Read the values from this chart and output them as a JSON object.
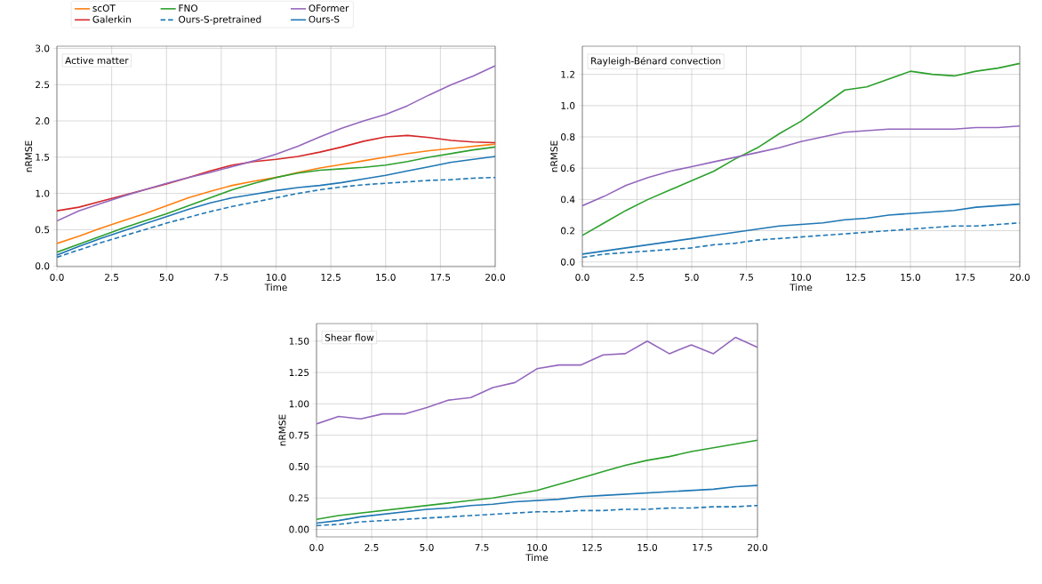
{
  "chart_data": [
    {
      "type": "line",
      "xlabel": "Time",
      "ylabel": "nRMSE",
      "annotations": [
        "Active matter"
      ],
      "grid": true,
      "legend": "top",
      "xlim": [
        0,
        20
      ],
      "ylim": [
        -0.01,
        3.03
      ],
      "xticks": [
        {
          "value": 0,
          "label": "0.0"
        },
        {
          "value": 2.5,
          "label": "2.5"
        },
        {
          "value": 5,
          "label": "5.0"
        },
        {
          "value": 7.5,
          "label": "7.5"
        },
        {
          "value": 10,
          "label": "10.0"
        },
        {
          "value": 12.5,
          "label": "12.5"
        },
        {
          "value": 15,
          "label": "15.0"
        },
        {
          "value": 17.5,
          "label": "17.5"
        },
        {
          "value": 20,
          "label": "20.0"
        }
      ],
      "yticks": [
        {
          "value": 0,
          "label": "0.0"
        },
        {
          "value": 0.5,
          "label": "0.5"
        },
        {
          "value": 1,
          "label": "1.0"
        },
        {
          "value": 1.5,
          "label": "1.5"
        },
        {
          "value": 2,
          "label": "2.0"
        },
        {
          "value": 2.5,
          "label": "2.5"
        },
        {
          "value": 3,
          "label": "3.0"
        }
      ],
      "x": [
        0,
        1,
        2,
        3,
        4,
        5,
        6,
        7,
        8,
        9,
        10,
        11,
        12,
        13,
        14,
        15,
        16,
        17,
        18,
        19,
        20
      ],
      "series": [
        {
          "name": "scOT",
          "color": "#ff7f0e",
          "line_style": "solid",
          "values": [
            0.31,
            0.41,
            0.52,
            0.62,
            0.72,
            0.83,
            0.94,
            1.03,
            1.11,
            1.17,
            1.22,
            1.29,
            1.35,
            1.4,
            1.45,
            1.5,
            1.55,
            1.59,
            1.62,
            1.65,
            1.68
          ]
        },
        {
          "name": "Galerkin",
          "color": "#d62728",
          "line_style": "solid",
          "values": [
            0.76,
            0.81,
            0.89,
            0.97,
            1.05,
            1.13,
            1.22,
            1.31,
            1.39,
            1.44,
            1.47,
            1.51,
            1.57,
            1.64,
            1.72,
            1.78,
            1.8,
            1.77,
            1.73,
            1.71,
            1.7
          ]
        },
        {
          "name": "FNO",
          "color": "#2ca02c",
          "line_style": "solid",
          "values": [
            0.19,
            0.3,
            0.41,
            0.52,
            0.62,
            0.72,
            0.83,
            0.94,
            1.05,
            1.14,
            1.22,
            1.28,
            1.32,
            1.34,
            1.36,
            1.39,
            1.44,
            1.5,
            1.55,
            1.6,
            1.64
          ]
        },
        {
          "name": "Ours-S-pretrained",
          "color": "#1f77b4",
          "line_style": "dashed",
          "values": [
            0.12,
            0.22,
            0.32,
            0.41,
            0.5,
            0.59,
            0.67,
            0.75,
            0.82,
            0.88,
            0.94,
            1.0,
            1.05,
            1.09,
            1.12,
            1.14,
            1.16,
            1.18,
            1.19,
            1.21,
            1.22
          ]
        },
        {
          "name": "OFormer",
          "color": "#9467bd",
          "line_style": "solid",
          "values": [
            0.62,
            0.76,
            0.86,
            0.96,
            1.05,
            1.14,
            1.22,
            1.29,
            1.37,
            1.45,
            1.54,
            1.65,
            1.78,
            1.9,
            2.0,
            2.09,
            2.21,
            2.36,
            2.5,
            2.62,
            2.76
          ]
        },
        {
          "name": "Ours-S",
          "color": "#1f77b4",
          "line_style": "solid",
          "values": [
            0.15,
            0.27,
            0.38,
            0.48,
            0.58,
            0.68,
            0.78,
            0.87,
            0.94,
            0.99,
            1.04,
            1.08,
            1.11,
            1.15,
            1.2,
            1.25,
            1.31,
            1.37,
            1.43,
            1.47,
            1.51
          ]
        }
      ]
    },
    {
      "type": "line",
      "xlabel": "Time",
      "ylabel": "nRMSE",
      "annotations": [
        "Rayleigh-Bénard convection"
      ],
      "grid": true,
      "xlim": [
        0,
        20
      ],
      "ylim": [
        -0.03,
        1.38
      ],
      "xticks": [
        {
          "value": 0,
          "label": "0.0"
        },
        {
          "value": 2.5,
          "label": "2.5"
        },
        {
          "value": 5,
          "label": "5.0"
        },
        {
          "value": 7.5,
          "label": "7.5"
        },
        {
          "value": 10,
          "label": "10.0"
        },
        {
          "value": 12.5,
          "label": "12.5"
        },
        {
          "value": 15,
          "label": "15.0"
        },
        {
          "value": 17.5,
          "label": "17.5"
        },
        {
          "value": 20,
          "label": "20.0"
        }
      ],
      "yticks": [
        {
          "value": 0,
          "label": "0.0"
        },
        {
          "value": 0.2,
          "label": "0.2"
        },
        {
          "value": 0.4,
          "label": "0.4"
        },
        {
          "value": 0.6,
          "label": "0.6"
        },
        {
          "value": 0.8,
          "label": "0.8"
        },
        {
          "value": 1,
          "label": "1.0"
        },
        {
          "value": 1.2,
          "label": "1.2"
        }
      ],
      "x": [
        0,
        1,
        2,
        3,
        4,
        5,
        6,
        7,
        8,
        9,
        10,
        11,
        12,
        13,
        14,
        15,
        16,
        17,
        18,
        19,
        20
      ],
      "series": [
        {
          "color": "#2ca02c",
          "line_style": "solid",
          "values": [
            0.17,
            0.25,
            0.33,
            0.4,
            0.46,
            0.52,
            0.58,
            0.66,
            0.73,
            0.82,
            0.9,
            1.0,
            1.1,
            1.12,
            1.17,
            1.22,
            1.2,
            1.19,
            1.22,
            1.24,
            1.27
          ]
        },
        {
          "color": "#1f77b4",
          "line_style": "dashed",
          "values": [
            0.03,
            0.05,
            0.06,
            0.07,
            0.08,
            0.09,
            0.11,
            0.12,
            0.14,
            0.15,
            0.16,
            0.17,
            0.18,
            0.19,
            0.2,
            0.21,
            0.22,
            0.23,
            0.23,
            0.24,
            0.25
          ]
        },
        {
          "color": "#9467bd",
          "line_style": "solid",
          "values": [
            0.36,
            0.42,
            0.49,
            0.54,
            0.58,
            0.61,
            0.64,
            0.67,
            0.7,
            0.73,
            0.77,
            0.8,
            0.83,
            0.84,
            0.85,
            0.85,
            0.85,
            0.85,
            0.86,
            0.86,
            0.87
          ]
        },
        {
          "color": "#1f77b4",
          "line_style": "solid",
          "values": [
            0.05,
            0.07,
            0.09,
            0.11,
            0.13,
            0.15,
            0.17,
            0.19,
            0.21,
            0.23,
            0.24,
            0.25,
            0.27,
            0.28,
            0.3,
            0.31,
            0.32,
            0.33,
            0.35,
            0.36,
            0.37
          ]
        }
      ]
    },
    {
      "type": "line",
      "xlabel": "Time",
      "ylabel": "nRMSE",
      "annotations": [
        "Shear flow"
      ],
      "grid": true,
      "xlim": [
        0,
        20
      ],
      "ylim": [
        -0.06,
        1.64
      ],
      "xticks": [
        {
          "value": 0,
          "label": "0.0"
        },
        {
          "value": 2.5,
          "label": "2.5"
        },
        {
          "value": 5,
          "label": "5.0"
        },
        {
          "value": 7.5,
          "label": "7.5"
        },
        {
          "value": 10,
          "label": "10.0"
        },
        {
          "value": 12.5,
          "label": "12.5"
        },
        {
          "value": 15,
          "label": "15.0"
        },
        {
          "value": 17.5,
          "label": "17.5"
        },
        {
          "value": 20,
          "label": "20.0"
        }
      ],
      "yticks": [
        {
          "value": 0,
          "label": "0.00"
        },
        {
          "value": 0.25,
          "label": "0.25"
        },
        {
          "value": 0.5,
          "label": "0.50"
        },
        {
          "value": 0.75,
          "label": "0.75"
        },
        {
          "value": 1,
          "label": "1.00"
        },
        {
          "value": 1.25,
          "label": "1.25"
        },
        {
          "value": 1.5,
          "label": "1.50"
        }
      ],
      "x": [
        0,
        1,
        2,
        3,
        4,
        5,
        6,
        7,
        8,
        9,
        10,
        11,
        12,
        13,
        14,
        15,
        16,
        17,
        18,
        19,
        20
      ],
      "series": [
        {
          "color": "#2ca02c",
          "line_style": "solid",
          "values": [
            0.08,
            0.11,
            0.13,
            0.15,
            0.17,
            0.19,
            0.21,
            0.23,
            0.25,
            0.28,
            0.31,
            0.36,
            0.41,
            0.46,
            0.51,
            0.55,
            0.58,
            0.62,
            0.65,
            0.68,
            0.71
          ]
        },
        {
          "color": "#1f77b4",
          "line_style": "dashed",
          "values": [
            0.03,
            0.04,
            0.06,
            0.07,
            0.08,
            0.09,
            0.1,
            0.11,
            0.12,
            0.13,
            0.14,
            0.14,
            0.15,
            0.15,
            0.16,
            0.16,
            0.17,
            0.17,
            0.18,
            0.18,
            0.19
          ]
        },
        {
          "color": "#9467bd",
          "line_style": "solid",
          "values": [
            0.84,
            0.9,
            0.88,
            0.92,
            0.92,
            0.97,
            1.03,
            1.05,
            1.13,
            1.17,
            1.28,
            1.31,
            1.31,
            1.39,
            1.4,
            1.5,
            1.4,
            1.47,
            1.4,
            1.53,
            1.45
          ]
        },
        {
          "color": "#1f77b4",
          "line_style": "solid",
          "values": [
            0.05,
            0.07,
            0.1,
            0.12,
            0.14,
            0.16,
            0.17,
            0.19,
            0.2,
            0.22,
            0.23,
            0.24,
            0.26,
            0.27,
            0.28,
            0.29,
            0.3,
            0.31,
            0.32,
            0.34,
            0.35
          ]
        }
      ]
    }
  ]
}
